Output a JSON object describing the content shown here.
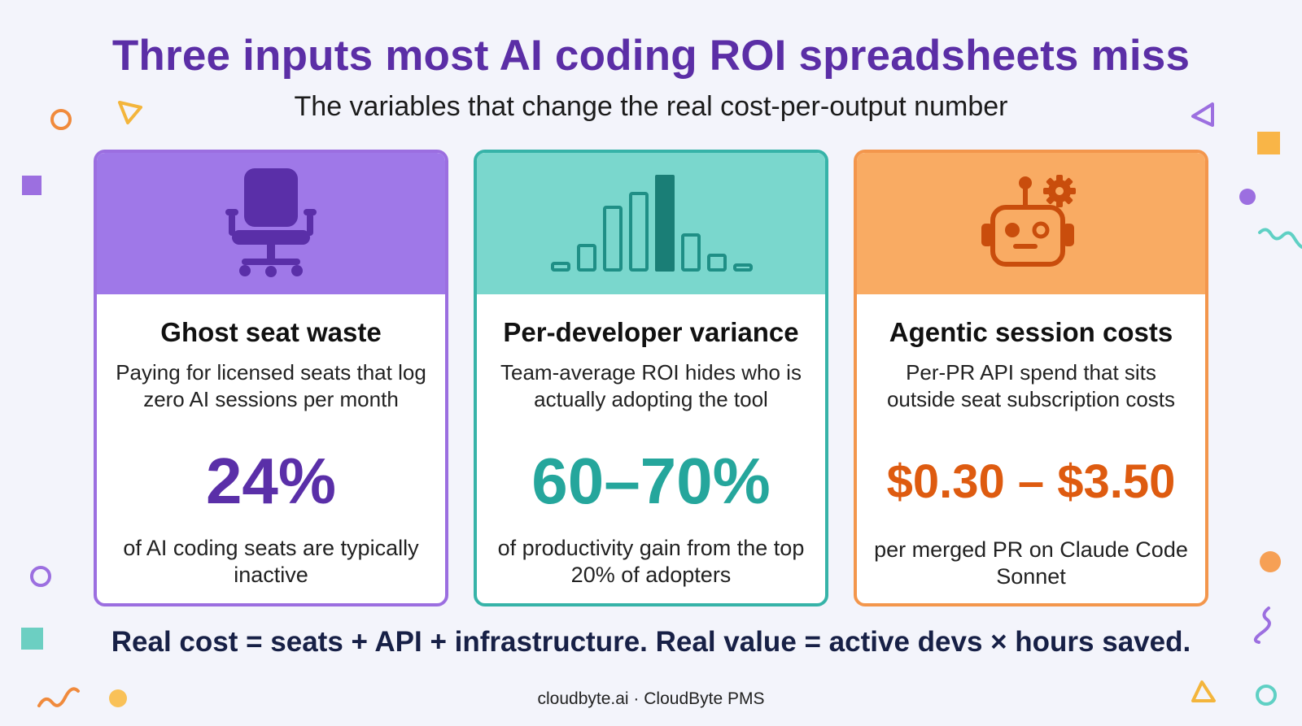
{
  "header": {
    "title": "Three inputs most AI coding ROI spreadsheets miss",
    "subtitle": "The variables that change the real cost-per-output number"
  },
  "cards": [
    {
      "icon": "office-chair-icon",
      "title": "Ghost seat waste",
      "description": "Paying for licensed seats that log zero AI sessions per month",
      "stat": "24%",
      "stat_caption": "of AI coding seats are typically inactive",
      "accent": "#5a2fa8",
      "header_color": "#9f78e8"
    },
    {
      "icon": "bar-chart-icon",
      "title": "Per-developer variance",
      "description": "Team-average ROI hides who is actually adopting the tool",
      "stat": "60–70%",
      "stat_caption": "of productivity gain from the top 20% of adopters",
      "accent": "#25a69c",
      "header_color": "#7ad7cd"
    },
    {
      "icon": "robot-gear-icon",
      "title": "Agentic session costs",
      "description": "Per-PR API spend that sits outside seat subscription costs",
      "stat": "$0.30 – $3.50",
      "stat_caption": "per merged PR on Claude Code Sonnet",
      "accent": "#de5b10",
      "header_color": "#f9ab63"
    }
  ],
  "bottom_line": "Real cost = seats + API + infrastructure. Real value = active devs × hours saved.",
  "footer": "cloudbyte.ai · CloudByte PMS"
}
